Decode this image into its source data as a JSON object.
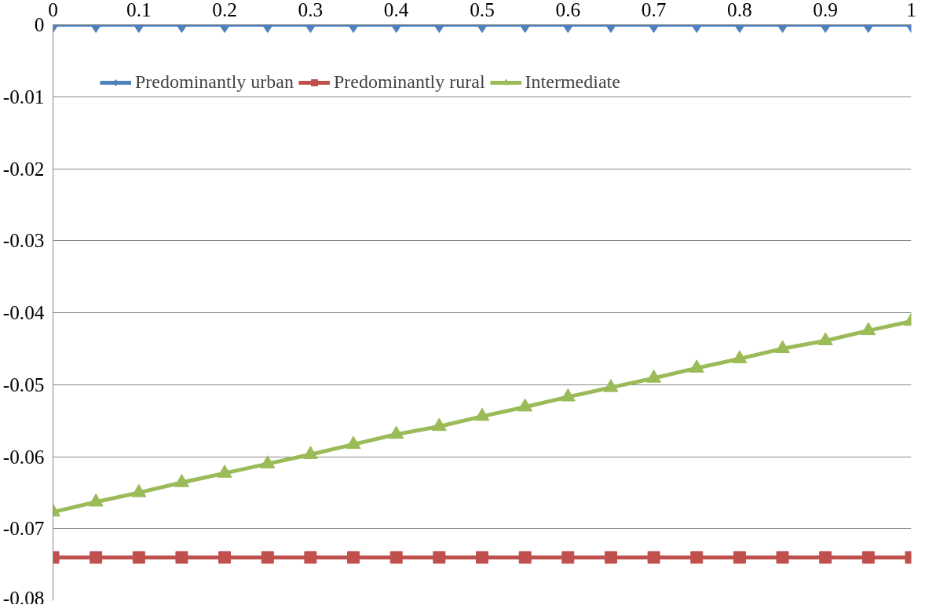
{
  "chart_data": {
    "type": "line",
    "x": [
      0,
      0.05,
      0.1,
      0.15,
      0.2,
      0.25,
      0.3,
      0.35,
      0.4,
      0.45,
      0.5,
      0.55,
      0.6,
      0.65,
      0.7,
      0.75,
      0.8,
      0.85,
      0.9,
      0.95,
      1
    ],
    "series": [
      {
        "name": "Predominantly urban",
        "color": "#4f81bd",
        "marker": "diamond",
        "values": [
          0,
          0,
          0,
          0,
          0,
          0,
          0,
          0,
          0,
          0,
          0,
          0,
          0,
          0,
          0,
          0,
          0,
          0,
          0,
          0,
          0
        ]
      },
      {
        "name": "Predominantly rural",
        "color": "#c0504d",
        "marker": "square",
        "values": [
          -0.074,
          -0.074,
          -0.074,
          -0.074,
          -0.074,
          -0.074,
          -0.074,
          -0.074,
          -0.074,
          -0.074,
          -0.074,
          -0.074,
          -0.074,
          -0.074,
          -0.074,
          -0.074,
          -0.074,
          -0.074,
          -0.074,
          -0.074,
          -0.074
        ]
      },
      {
        "name": "Intermediate",
        "color": "#9bbb59",
        "marker": "triangle",
        "values": [
          -0.0677,
          -0.0663,
          -0.065,
          -0.0636,
          -0.0623,
          -0.061,
          -0.0597,
          -0.0583,
          -0.0569,
          -0.0558,
          -0.0544,
          -0.0531,
          -0.0517,
          -0.0504,
          -0.0491,
          -0.0477,
          -0.0464,
          -0.045,
          -0.0439,
          -0.0425,
          -0.0412
        ]
      }
    ],
    "xlim": [
      0,
      1
    ],
    "xticks": [
      0,
      0.1,
      0.2,
      0.3,
      0.4,
      0.5,
      0.6,
      0.7,
      0.8,
      0.9,
      1
    ],
    "ylim": [
      -0.08,
      0
    ],
    "yticks": [
      0,
      -0.01,
      -0.02,
      -0.03,
      -0.04,
      -0.05,
      -0.06,
      -0.07,
      -0.08
    ],
    "grid": "y",
    "legend": "top left",
    "line_style": "solid"
  }
}
